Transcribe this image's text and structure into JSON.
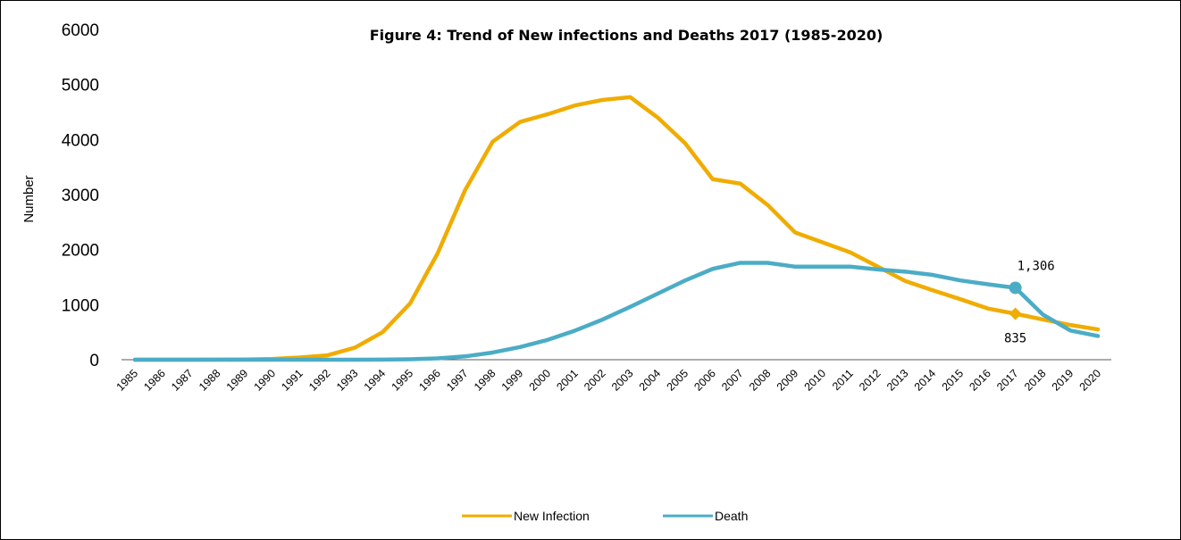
{
  "chart_data": {
    "type": "line",
    "title": "Figure 4: Trend of New infections and Deaths 2017 (1985-2020)",
    "ylabel": "Number",
    "xlabel": "",
    "ylim": [
      0,
      6000
    ],
    "yticks": [
      0,
      1000,
      2000,
      3000,
      4000,
      5000,
      6000
    ],
    "grid": false,
    "legend_placement": "bottom",
    "categories": [
      "1985",
      "1986",
      "1987",
      "1988",
      "1989",
      "1990",
      "1991",
      "1992",
      "1993",
      "1994",
      "1995",
      "1996",
      "1997",
      "1998",
      "1999",
      "2000",
      "2001",
      "2002",
      "2003",
      "2004",
      "2005",
      "2006",
      "2007",
      "2008",
      "2009",
      "2010",
      "2011",
      "2012",
      "2013",
      "2014",
      "2015",
      "2016",
      "2017",
      "2018",
      "2019",
      "2020"
    ],
    "series": [
      {
        "name": "New Infection",
        "color": "#F0AC00",
        "values": [
          0,
          0,
          0,
          2,
          5,
          15,
          40,
          80,
          220,
          500,
          1020,
          1930,
          3080,
          3960,
          4320,
          4460,
          4620,
          4720,
          4770,
          4400,
          3930,
          3280,
          3200,
          2810,
          2310,
          2130,
          1950,
          1690,
          1430,
          1260,
          1100,
          930,
          835,
          730,
          630,
          550
        ]
      },
      {
        "name": "Death",
        "color": "#4BACC6",
        "values": [
          0,
          0,
          0,
          0,
          0,
          0,
          0,
          0,
          0,
          2,
          8,
          25,
          60,
          130,
          230,
          360,
          530,
          730,
          960,
          1200,
          1440,
          1650,
          1760,
          1760,
          1690,
          1690,
          1690,
          1640,
          1600,
          1540,
          1440,
          1370,
          1306,
          820,
          530,
          430
        ]
      }
    ],
    "annotations": [
      {
        "series": "Death",
        "category": "2017",
        "value": 1306,
        "label": "1,306",
        "marker": "circle"
      },
      {
        "series": "New Infection",
        "category": "2017",
        "value": 835,
        "label": "835",
        "marker": "diamond"
      }
    ]
  }
}
